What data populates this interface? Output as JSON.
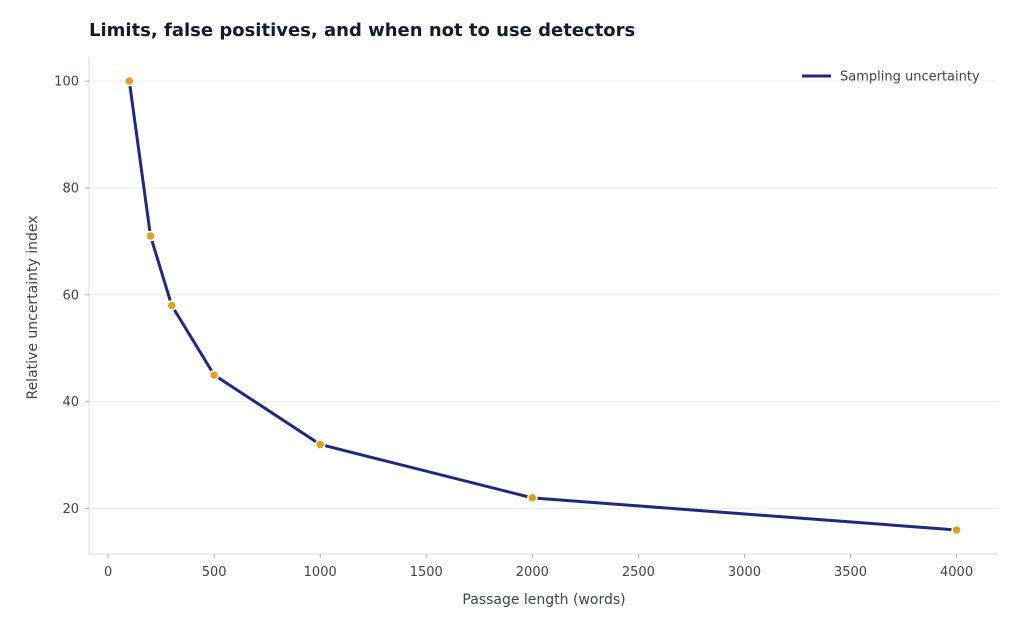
{
  "chart_data": {
    "type": "line",
    "title": "Limits, false positives, and when not to use detectors",
    "xlabel": "Passage length (words)",
    "ylabel": "Relative uncertainty index",
    "xlim": [
      -90,
      4200
    ],
    "ylim": [
      11.5,
      104.5
    ],
    "xticks": [
      0,
      500,
      1000,
      1500,
      2000,
      2500,
      3000,
      3500,
      4000
    ],
    "yticks": [
      20,
      40,
      60,
      80,
      100
    ],
    "grid": true,
    "legend_position": "top-right",
    "series": [
      {
        "name": "Sampling uncertainty",
        "color": "#1f2a7a",
        "marker_color": "#e0a020",
        "x": [
          100,
          200,
          300,
          500,
          1000,
          2000,
          4000
        ],
        "y": [
          100,
          71,
          58,
          45,
          32,
          22,
          16
        ]
      }
    ]
  }
}
